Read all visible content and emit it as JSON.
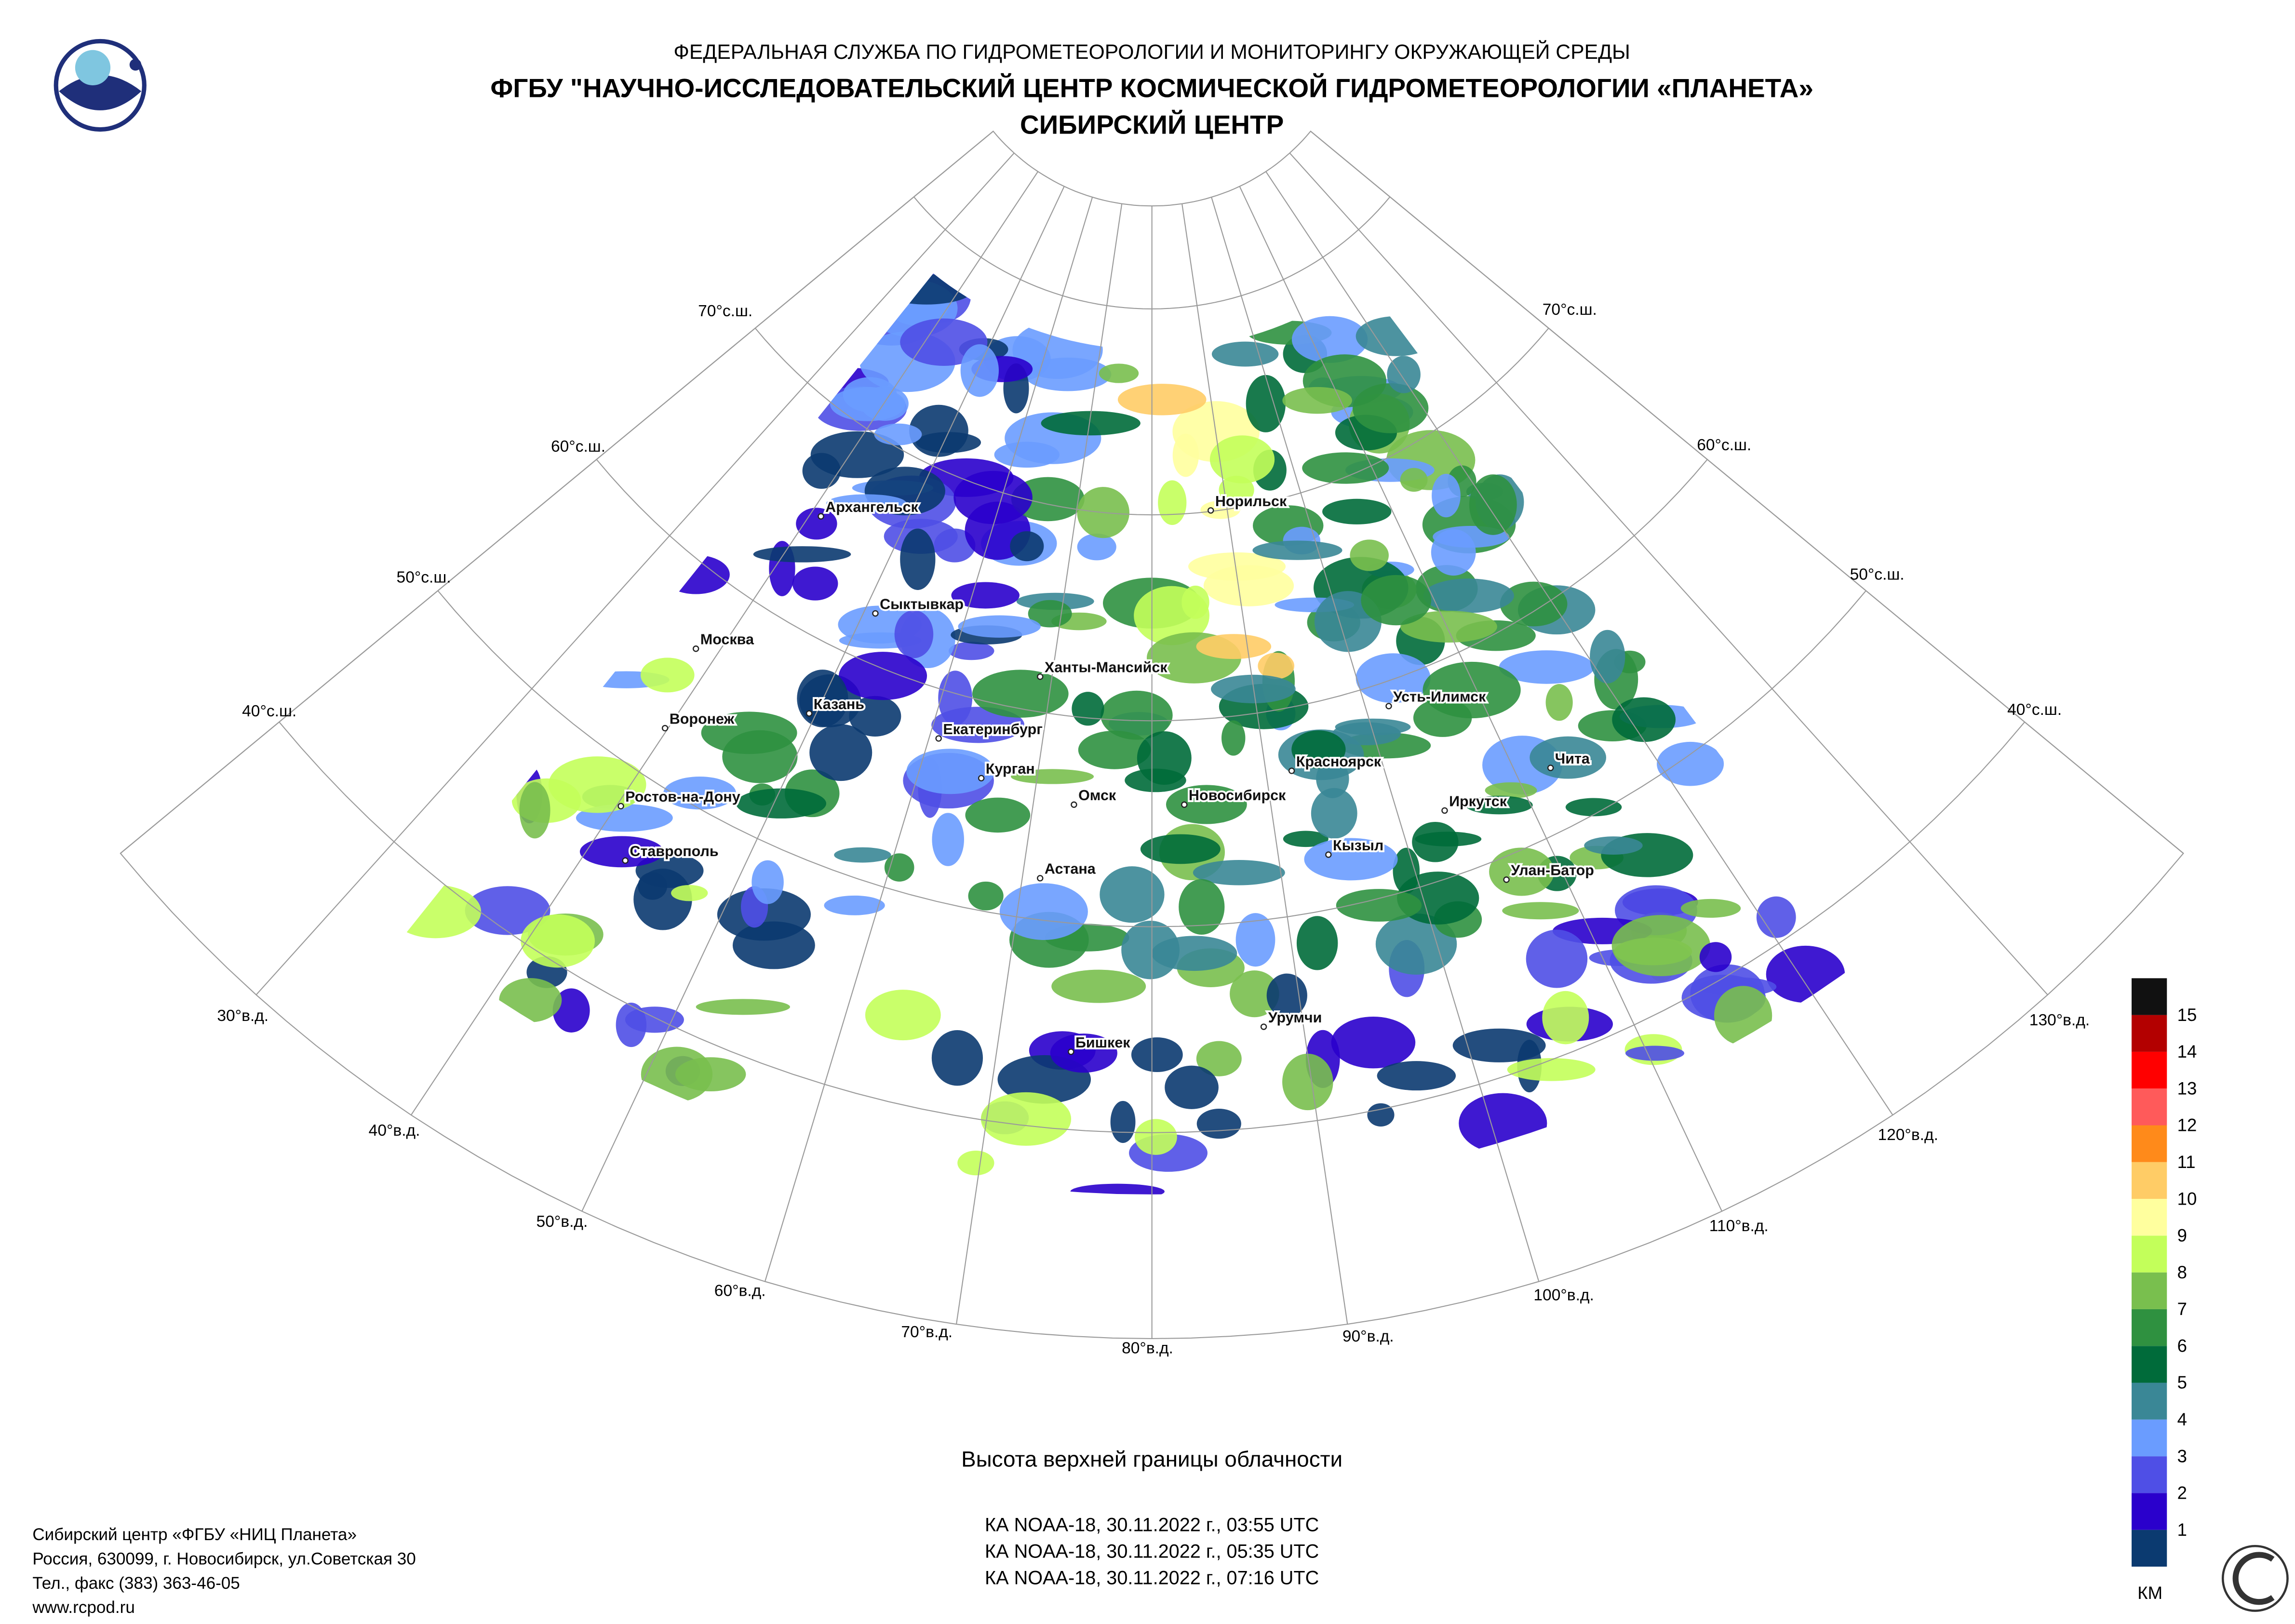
{
  "header": {
    "agency": "ФЕДЕРАЛЬНАЯ СЛУЖБА ПО ГИДРОМЕТЕОРОЛОГИИ И МОНИТОРИНГУ ОКРУЖАЮЩЕЙ СРЕДЫ",
    "title": "ФГБУ \"НАУЧНО-ИССЛЕДОВАТЕЛЬСКИЙ ЦЕНТР КОСМИЧЕСКОЙ ГИДРОМЕТЕОРОЛОГИИ «ПЛАНЕТА»",
    "subtitle": "СИБИРСКИЙ ЦЕНТР"
  },
  "map": {
    "latitude_labels": [
      "70°с.ш.",
      "60°с.ш.",
      "50°с.ш.",
      "40°с.ш."
    ],
    "longitude_labels": [
      "30°в.д.",
      "40°в.д.",
      "50°в.д.",
      "60°в.д.",
      "70°в.д.",
      "80°в.д.",
      "90°в.д.",
      "100°в.д.",
      "110°в.д.",
      "120°в.д.",
      "130°в.д."
    ],
    "cities": [
      "Архангельск",
      "Норильск",
      "Сыктывкар",
      "Москва",
      "Ханты-Мансийск",
      "Казань",
      "Воронеж",
      "Усть-Илимск",
      "Екатеринбург",
      "Курган",
      "Красноярск",
      "Чита",
      "Омск",
      "Новосибирск",
      "Иркутск",
      "Ростов-на-Дону",
      "Кызыл",
      "Ставрополь",
      "Астана",
      "Улан-Батор",
      "Урумчи",
      "Бишкек"
    ]
  },
  "legend": {
    "levels": [
      1,
      2,
      3,
      4,
      5,
      6,
      7,
      8,
      9,
      10,
      11,
      12,
      13,
      14,
      15
    ],
    "colors": [
      "#0b3a70",
      "#2a00cc",
      "#4f4fe6",
      "#6a9cff",
      "#3a8796",
      "#006b3a",
      "#2f9140",
      "#79bf4e",
      "#c3ff5a",
      "#ffff9e",
      "#ffcc66",
      "#ff8a1a",
      "#ff5a5a",
      "#ff0000",
      "#b30000",
      "#111111"
    ],
    "unit": "КМ"
  },
  "caption": "Высота верхней границы облачности",
  "passes": [
    "КА NOAA-18, 30.11.2022 г., 03:55 UTC",
    "КА NOAA-18, 30.11.2022 г., 05:35 UTC",
    "КА NOAA-18, 30.11.2022 г., 07:16 UTC"
  ],
  "footer": [
    "Сибирский центр «ФГБУ «НИЦ Планета»",
    "Россия, 630099, г. Новосибирск, ул.Советская 30",
    "Тел., факс (383) 363-46-05",
    "www.rcpod.ru"
  ]
}
